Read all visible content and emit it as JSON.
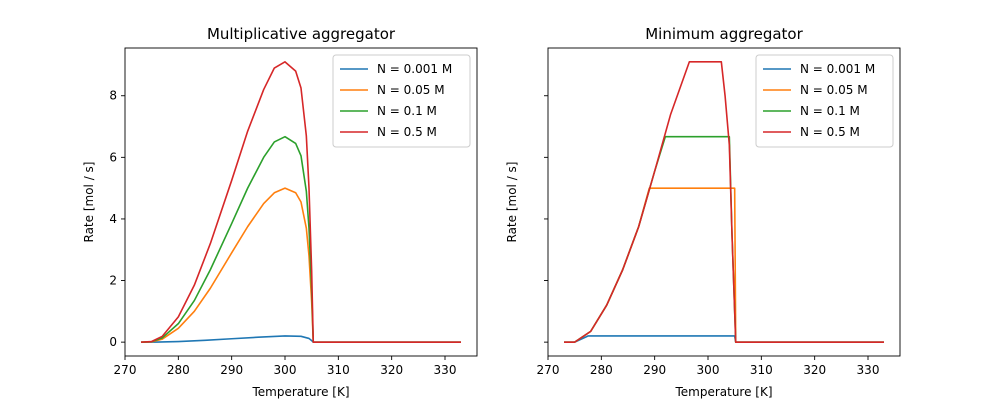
{
  "chart_data": [
    {
      "type": "line",
      "title": "Multiplicative aggregator",
      "xlabel": "Temperature [K]",
      "ylabel": "Rate [mol / s]",
      "xlim": [
        270,
        336
      ],
      "ylim": [
        -0.45,
        9.55
      ],
      "xticks": [
        270,
        280,
        290,
        300,
        310,
        320,
        330
      ],
      "yticks": [
        0,
        2,
        4,
        6,
        8
      ],
      "yticklabels_visible": true,
      "grid": false,
      "legend": "top-right",
      "series": [
        {
          "name": "N = 0.001 M",
          "color": "#1f77b4",
          "x": [
            273,
            276,
            280,
            285,
            290,
            295,
            300,
            303,
            304.5,
            305,
            305.3,
            310,
            320,
            333
          ],
          "y": [
            0,
            0.001,
            0.02,
            0.06,
            0.11,
            0.16,
            0.2,
            0.19,
            0.12,
            0.05,
            0,
            0,
            0,
            0
          ]
        },
        {
          "name": "N = 0.05 M",
          "color": "#ff7f0e",
          "x": [
            273,
            275,
            277,
            280,
            283,
            286,
            290,
            293,
            296,
            298,
            300,
            302,
            303,
            304,
            304.5,
            305,
            305.3,
            310,
            320,
            333
          ],
          "y": [
            0,
            0.01,
            0.1,
            0.45,
            1.0,
            1.75,
            2.9,
            3.75,
            4.5,
            4.85,
            5.0,
            4.85,
            4.55,
            3.7,
            2.8,
            1.3,
            0,
            0,
            0,
            0
          ]
        },
        {
          "name": "N = 0.1 M",
          "color": "#2ca02c",
          "x": [
            273,
            275,
            277,
            280,
            283,
            286,
            290,
            293,
            296,
            298,
            300,
            302,
            303,
            304,
            304.5,
            305,
            305.3,
            310,
            320,
            333
          ],
          "y": [
            0,
            0.015,
            0.14,
            0.6,
            1.35,
            2.35,
            3.85,
            5.0,
            6.0,
            6.5,
            6.67,
            6.45,
            6.05,
            4.9,
            3.7,
            1.7,
            0,
            0,
            0,
            0
          ]
        },
        {
          "name": "N = 0.5 M",
          "color": "#d62728",
          "x": [
            273,
            275,
            277,
            280,
            283,
            286,
            290,
            293,
            296,
            298,
            300,
            302,
            303,
            304,
            304.5,
            305,
            305.3,
            310,
            320,
            333
          ],
          "y": [
            0,
            0.02,
            0.19,
            0.82,
            1.85,
            3.2,
            5.25,
            6.85,
            8.2,
            8.9,
            9.1,
            8.8,
            8.25,
            6.7,
            5.0,
            2.3,
            0,
            0,
            0,
            0
          ]
        }
      ]
    },
    {
      "type": "line",
      "title": "Minimum aggregator",
      "xlabel": "Temperature [K]",
      "ylabel": "Rate [mol / s]",
      "xlim": [
        270,
        336
      ],
      "ylim": [
        -0.45,
        9.55
      ],
      "xticks": [
        270,
        280,
        290,
        300,
        310,
        320,
        330
      ],
      "yticks": [
        0,
        2,
        4,
        6,
        8
      ],
      "yticklabels_visible": false,
      "grid": false,
      "legend": "top-right",
      "series": [
        {
          "name": "N = 0.001 M",
          "color": "#1f77b4",
          "x": [
            273,
            275,
            277.5,
            305,
            305.2,
            333
          ],
          "y": [
            0,
            0,
            0.2,
            0.2,
            0,
            0
          ]
        },
        {
          "name": "N = 0.05 M",
          "color": "#ff7f0e",
          "x": [
            273,
            275,
            278,
            281,
            284,
            287,
            289,
            305,
            305.2,
            333
          ],
          "y": [
            0,
            0,
            0.35,
            1.2,
            2.35,
            3.75,
            5.0,
            5.0,
            0,
            0
          ]
        },
        {
          "name": "N = 0.1 M",
          "color": "#2ca02c",
          "x": [
            273,
            275,
            278,
            281,
            284,
            287,
            290,
            292,
            304,
            304.5,
            305,
            305.2,
            333
          ],
          "y": [
            0,
            0,
            0.35,
            1.2,
            2.35,
            3.75,
            5.55,
            6.67,
            6.67,
            3.5,
            1.0,
            0,
            0
          ]
        },
        {
          "name": "N = 0.5 M",
          "color": "#d62728",
          "x": [
            273,
            275,
            278,
            281,
            284,
            287,
            290,
            293,
            296.5,
            302.5,
            303.2,
            304,
            304.5,
            305,
            305.2,
            333
          ],
          "y": [
            0,
            0,
            0.35,
            1.2,
            2.35,
            3.75,
            5.55,
            7.4,
            9.1,
            9.1,
            8.0,
            6.4,
            3.5,
            1.0,
            0,
            0
          ]
        }
      ]
    }
  ]
}
